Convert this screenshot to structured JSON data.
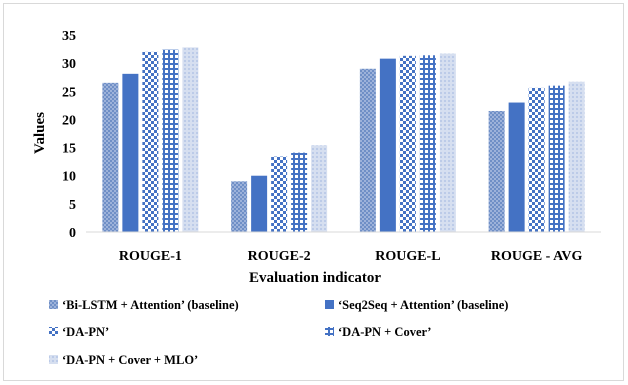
{
  "chart_data": {
    "type": "bar",
    "categories": [
      "ROUGE-1",
      "ROUGE-2",
      "ROUGE-L",
      "ROUGE - AVG"
    ],
    "series": [
      {
        "name": "‘Bi-LSTM + Attention’ (baseline)",
        "values": [
          26.5,
          9.0,
          29.0,
          21.5
        ],
        "color": "#7393c8",
        "pattern": "fine-grid"
      },
      {
        "name": "‘Seq2Seq + Attention’ (baseline)",
        "values": [
          28.1,
          10.0,
          30.8,
          23.0
        ],
        "color": "#4472c4",
        "pattern": "solid"
      },
      {
        "name": "‘DA-PN’",
        "values": [
          32.0,
          13.4,
          31.3,
          25.6
        ],
        "color": "#4472c4",
        "pattern": "checker"
      },
      {
        "name": "‘DA-PN + Cover’",
        "values": [
          32.4,
          14.1,
          31.4,
          26.0
        ],
        "color": "#4472c4",
        "pattern": "dotted-grid"
      },
      {
        "name": "‘DA-PN + Cover + MLO’",
        "values": [
          32.8,
          15.4,
          31.7,
          26.7
        ],
        "color": "#c9d4ea",
        "pattern": "light"
      }
    ],
    "xlabel": "Evaluation indicator",
    "ylabel": "Values",
    "ylim": [
      0,
      35
    ],
    "yticks": [
      "0",
      "5",
      "10",
      "15",
      "20",
      "25",
      "30",
      "35"
    ],
    "grid": false,
    "legend_position": "bottom"
  }
}
